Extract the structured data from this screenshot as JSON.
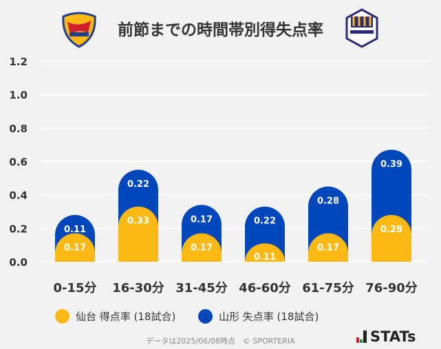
{
  "title": "前節までの時間帯別得失点率",
  "logos": {
    "left": "VEGALTA",
    "right": "Montedio YAMAGATA"
  },
  "colors": {
    "sendai": "#FDB913",
    "yamagata": "#0047BB",
    "background": "#f2f2f2",
    "grid": "#ffffff"
  },
  "chart_data": {
    "type": "bar",
    "stacked": true,
    "title": "前節までの時間帯別得失点率",
    "categories": [
      "0-15分",
      "16-30分",
      "31-45分",
      "46-60分",
      "61-75分",
      "76-90分"
    ],
    "series": [
      {
        "name": "仙台 得点率 (18試合)",
        "values": [
          0.17,
          0.33,
          0.17,
          0.11,
          0.17,
          0.28
        ]
      },
      {
        "name": "山形 失点率 (18試合)",
        "values": [
          0.11,
          0.22,
          0.17,
          0.22,
          0.28,
          0.39
        ]
      }
    ],
    "yticks": [
      "0.0",
      "0.2",
      "0.4",
      "0.6",
      "0.8",
      "1.0",
      "1.2"
    ],
    "ylim": [
      0,
      1.2
    ],
    "grid": true,
    "legend_position": "bottom"
  },
  "footer": {
    "note": "データは2025/06/08時点　© SPORTERIA",
    "brand": "STATs"
  }
}
